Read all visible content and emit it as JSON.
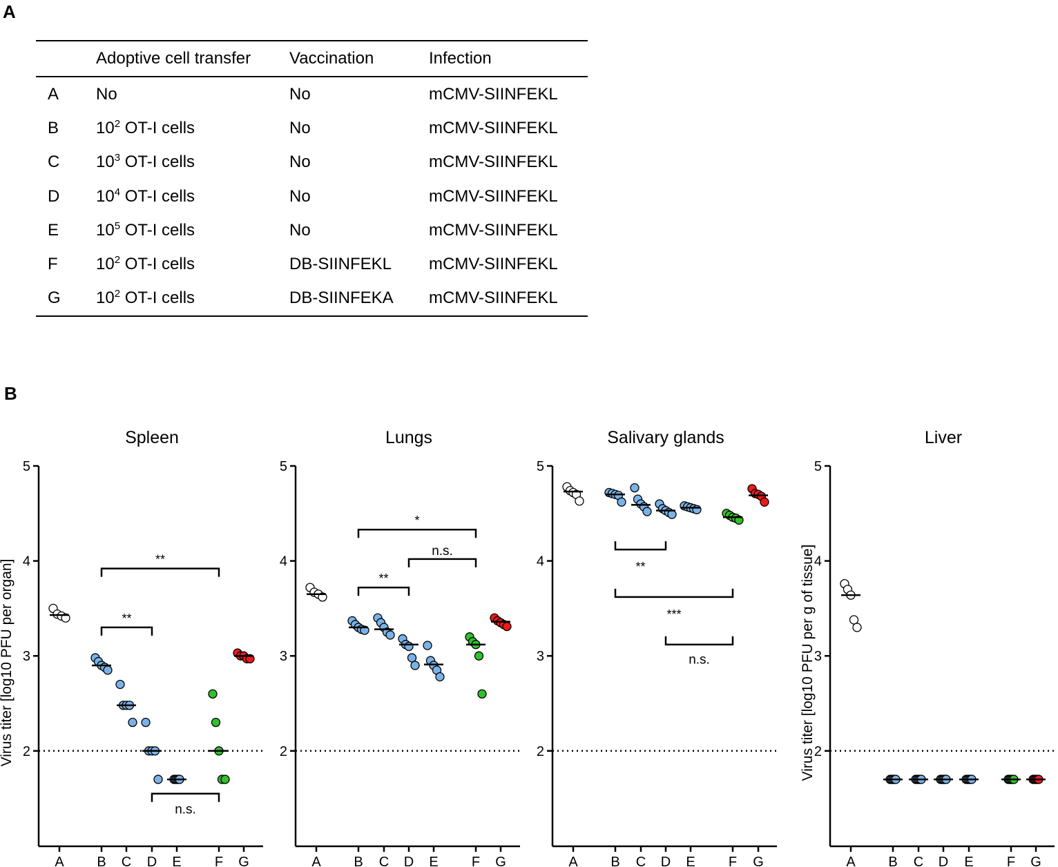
{
  "panel_labels": {
    "a": "A",
    "b": "B"
  },
  "table": {
    "headers": [
      "",
      "Adoptive cell transfer",
      "Vaccination",
      "Infection"
    ],
    "rows": [
      {
        "group": "A",
        "transfer": "No",
        "exp": "",
        "transfer_rest": "",
        "vaccination": "No",
        "infection": "mCMV-SIINFEKL"
      },
      {
        "group": "B",
        "transfer": "10",
        "exp": "2",
        "transfer_rest": " OT-I cells",
        "vaccination": "No",
        "infection": "mCMV-SIINFEKL"
      },
      {
        "group": "C",
        "transfer": "10",
        "exp": "3",
        "transfer_rest": " OT-I cells",
        "vaccination": "No",
        "infection": "mCMV-SIINFEKL"
      },
      {
        "group": "D",
        "transfer": "10",
        "exp": "4",
        "transfer_rest": " OT-I cells",
        "vaccination": "No",
        "infection": "mCMV-SIINFEKL"
      },
      {
        "group": "E",
        "transfer": "10",
        "exp": "5",
        "transfer_rest": " OT-I cells",
        "vaccination": "No",
        "infection": "mCMV-SIINFEKL"
      },
      {
        "group": "F",
        "transfer": "10",
        "exp": "2",
        "transfer_rest": " OT-I cells",
        "vaccination": "DB-SIINFEKL",
        "infection": "mCMV-SIINFEKL"
      },
      {
        "group": "G",
        "transfer": "10",
        "exp": "2",
        "transfer_rest": " OT-I cells",
        "vaccination": "DB-SIINFEKA",
        "infection": "mCMV-SIINFEKL"
      }
    ]
  },
  "colors": {
    "A": "#ffffff",
    "B": "#7ab2e8",
    "C": "#7ab2e8",
    "D": "#7ab2e8",
    "E": "#7ab2e8",
    "F": "#33c02c",
    "G": "#ee1a1a"
  },
  "chart_data": [
    {
      "type": "scatter",
      "title": "Spleen",
      "ylabel": "Virus titer [log10 PFU per organ]",
      "ylim": [
        1,
        5
      ],
      "yticks": [
        2,
        3,
        4,
        5
      ],
      "detection_limit": 2,
      "categories": [
        "A",
        "B",
        "C",
        "D",
        "E",
        "F",
        "G"
      ],
      "groups": [
        {
          "name": "A",
          "values": [
            3.5,
            3.44,
            3.42,
            3.4
          ],
          "median": 3.43
        },
        {
          "name": "B",
          "values": [
            2.98,
            2.94,
            2.9,
            2.88,
            2.85
          ],
          "median": 2.9
        },
        {
          "name": "C",
          "values": [
            2.7,
            2.48,
            2.48,
            2.48,
            2.3
          ],
          "median": 2.48
        },
        {
          "name": "D",
          "values": [
            2.3,
            2.0,
            2.0,
            2.0,
            1.7
          ],
          "median": 2.0
        },
        {
          "name": "E",
          "values": [
            1.7,
            1.7,
            1.7,
            1.7,
            1.7
          ],
          "median": 1.7
        },
        {
          "name": "F",
          "values": [
            2.6,
            2.3,
            2.0,
            1.7,
            1.7
          ],
          "median": 2.0
        },
        {
          "name": "G",
          "values": [
            3.03,
            3.0,
            3.0,
            2.97,
            2.97
          ],
          "median": 3.0
        }
      ],
      "comparisons": [
        {
          "from": "B",
          "to": "F",
          "label": "**",
          "y": 3.92
        },
        {
          "from": "B",
          "to": "D",
          "label": "**",
          "y": 3.3
        },
        {
          "from": "D",
          "to": "F",
          "label": "n.s.",
          "y": 1.55
        }
      ]
    },
    {
      "type": "scatter",
      "title": "Lungs",
      "ylabel": "",
      "ylim": [
        1,
        5
      ],
      "yticks": [
        2,
        3,
        4,
        5
      ],
      "detection_limit": 2,
      "categories": [
        "A",
        "B",
        "C",
        "D",
        "E",
        "F",
        "G"
      ],
      "groups": [
        {
          "name": "A",
          "values": [
            3.72,
            3.67,
            3.65,
            3.62
          ],
          "median": 3.65
        },
        {
          "name": "B",
          "values": [
            3.37,
            3.33,
            3.3,
            3.28,
            3.27
          ],
          "median": 3.3
        },
        {
          "name": "C",
          "values": [
            3.4,
            3.35,
            3.3,
            3.25,
            3.22
          ],
          "median": 3.28
        },
        {
          "name": "D",
          "values": [
            3.18,
            3.12,
            3.1,
            2.98,
            2.9
          ],
          "median": 3.12
        },
        {
          "name": "E",
          "values": [
            3.11,
            2.95,
            2.9,
            2.85,
            2.78
          ],
          "median": 2.91
        },
        {
          "name": "F",
          "values": [
            3.2,
            3.15,
            3.12,
            3.0,
            2.6
          ],
          "median": 3.12
        },
        {
          "name": "G",
          "values": [
            3.4,
            3.37,
            3.35,
            3.33,
            3.31
          ],
          "median": 3.36
        }
      ],
      "comparisons": [
        {
          "from": "B",
          "to": "F",
          "label": "*",
          "y": 4.33
        },
        {
          "from": "D",
          "to": "F",
          "label": "n.s.",
          "y": 4.02
        },
        {
          "from": "B",
          "to": "D",
          "label": "**",
          "y": 3.72
        }
      ]
    },
    {
      "type": "scatter",
      "title": "Salivary glands",
      "ylabel": "",
      "ylim": [
        1,
        5
      ],
      "yticks": [
        2,
        3,
        4,
        5
      ],
      "detection_limit": 2,
      "categories": [
        "A",
        "B",
        "C",
        "D",
        "E",
        "F",
        "G"
      ],
      "groups": [
        {
          "name": "A",
          "values": [
            4.78,
            4.74,
            4.72,
            4.7,
            4.63
          ],
          "median": 4.73
        },
        {
          "name": "B",
          "values": [
            4.72,
            4.71,
            4.7,
            4.69,
            4.62
          ],
          "median": 4.7
        },
        {
          "name": "C",
          "values": [
            4.77,
            4.65,
            4.6,
            4.57,
            4.52
          ],
          "median": 4.59
        },
        {
          "name": "D",
          "values": [
            4.6,
            4.55,
            4.53,
            4.51,
            4.49
          ],
          "median": 4.53
        },
        {
          "name": "E",
          "values": [
            4.58,
            4.57,
            4.56,
            4.55,
            4.54
          ],
          "median": 4.56
        },
        {
          "name": "F",
          "values": [
            4.5,
            4.48,
            4.46,
            4.45,
            4.43
          ],
          "median": 4.46
        },
        {
          "name": "G",
          "values": [
            4.76,
            4.71,
            4.7,
            4.68,
            4.62
          ],
          "median": 4.69
        }
      ],
      "comparisons": [
        {
          "from": "B",
          "to": "D",
          "label": "**",
          "y": 4.12,
          "down": true
        },
        {
          "from": "B",
          "to": "F",
          "label": "***",
          "y": 3.62,
          "down": true
        },
        {
          "from": "D",
          "to": "F",
          "label": "n.s.",
          "y": 3.12,
          "down": true
        }
      ]
    },
    {
      "type": "scatter",
      "title": "Liver",
      "ylabel": "Virus titer [log10 PFU per g of tissue]",
      "ylim": [
        1,
        5
      ],
      "yticks": [
        2,
        3,
        4,
        5
      ],
      "detection_limit": 2,
      "categories": [
        "A",
        "B",
        "C",
        "D",
        "E",
        "F",
        "G"
      ],
      "groups": [
        {
          "name": "A",
          "values": [
            3.76,
            3.7,
            3.64,
            3.38,
            3.3
          ],
          "median": 3.64
        },
        {
          "name": "B",
          "values": [
            1.7,
            1.7,
            1.7,
            1.7,
            1.7
          ],
          "median": 1.7
        },
        {
          "name": "C",
          "values": [
            1.7,
            1.7,
            1.7,
            1.7,
            1.7
          ],
          "median": 1.7
        },
        {
          "name": "D",
          "values": [
            1.7,
            1.7,
            1.7,
            1.7,
            1.7
          ],
          "median": 1.7
        },
        {
          "name": "E",
          "values": [
            1.7,
            1.7,
            1.7,
            1.7,
            1.7
          ],
          "median": 1.7
        },
        {
          "name": "F",
          "values": [
            1.7,
            1.7,
            1.7,
            1.7,
            1.7
          ],
          "median": 1.7
        },
        {
          "name": "G",
          "values": [
            1.7,
            1.7,
            1.7,
            1.7,
            1.7
          ],
          "median": 1.7
        }
      ],
      "comparisons": []
    }
  ]
}
